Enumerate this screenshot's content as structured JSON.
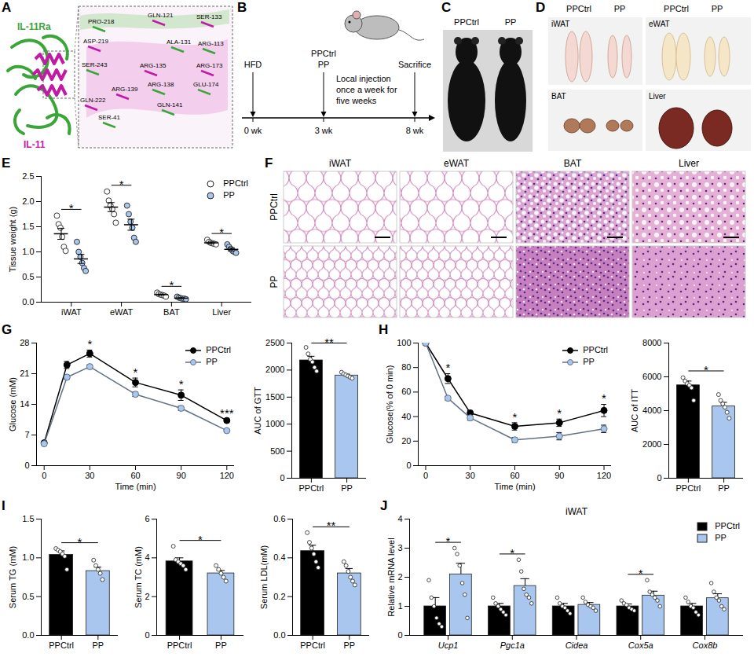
{
  "chart_data": [
    {
      "panel": "E",
      "type": "dot",
      "categories": [
        "iWAT",
        "eWAT",
        "BAT",
        "Liver"
      ],
      "ylabel": "Tissue weight (g)",
      "ylim": [
        0,
        2.5
      ],
      "yticks": [
        {
          "value": 0,
          "label": "0.0"
        },
        {
          "value": 0.5,
          "label": "0.5"
        },
        {
          "value": 1,
          "label": "1.0"
        },
        {
          "value": 1.5,
          "label": "1.5"
        },
        {
          "value": 2,
          "label": "2.0"
        },
        {
          "value": 2.5,
          "label": "2.5"
        }
      ],
      "legend": "top-right",
      "series": [
        {
          "name": "PPCtrl",
          "color": "#ffffff",
          "marker": "circle",
          "points": [
            [
              1.72,
              1.55,
              1.48,
              1.3,
              1.1,
              1.02
            ],
            [
              2.2,
              2.02,
              1.92,
              1.85,
              1.75,
              1.58
            ],
            [
              0.19,
              0.16,
              0.15,
              0.14,
              0.13,
              0.11
            ],
            [
              1.24,
              1.2,
              1.18,
              1.17,
              1.16,
              1.15
            ]
          ],
          "values": [
            1.36,
            1.89,
            0.15,
            1.18
          ],
          "errors": [
            0.11,
            0.09,
            0.01,
            0.015
          ]
        },
        {
          "name": "PP",
          "color": "#a9c6ee",
          "marker": "circle",
          "points": [
            [
              1.2,
              1.0,
              0.9,
              0.78,
              0.68,
              0.62
            ],
            [
              1.92,
              1.75,
              1.6,
              1.48,
              1.28,
              1.2
            ],
            [
              0.11,
              0.09,
              0.08,
              0.07,
              0.07,
              0.06
            ],
            [
              1.15,
              1.1,
              1.06,
              1.02,
              1.0,
              0.98
            ]
          ],
          "values": [
            0.86,
            1.54,
            0.08,
            1.05
          ],
          "errors": [
            0.09,
            0.11,
            0.007,
            0.03
          ]
        }
      ],
      "annotations": [
        {
          "x": "iWAT",
          "text": "*"
        },
        {
          "x": "eWAT",
          "text": "*"
        },
        {
          "x": "BAT",
          "text": "*"
        },
        {
          "x": "Liver",
          "text": "*"
        }
      ]
    },
    {
      "panel": "G",
      "type": "line",
      "x": [
        0,
        15,
        30,
        60,
        90,
        120
      ],
      "xlim": [
        -5,
        125
      ],
      "xticks": [
        0,
        30,
        60,
        90,
        120
      ],
      "xlabel": "Time (min)",
      "ylabel": "Glucose (mM)",
      "ylim": [
        0,
        28
      ],
      "yticks": [
        0,
        7,
        14,
        21,
        28
      ],
      "legend": "top-right",
      "series": [
        {
          "name": "PPCtrl",
          "color": "#000000",
          "marker": "circle",
          "values": [
            5.2,
            23,
            25.6,
            19,
            16.1,
            10.3
          ],
          "errors": [
            0.3,
            0.8,
            0.8,
            1,
            1.2,
            0.3
          ]
        },
        {
          "name": "PP",
          "color": "#a9c6ee",
          "marker": "circle",
          "values": [
            5,
            20.2,
            22.6,
            16.3,
            13.1,
            8
          ],
          "errors": [
            0.2,
            0.5,
            0.4,
            0.5,
            0.5,
            0.2
          ]
        }
      ],
      "annotations": [
        {
          "x": 30,
          "text": "*"
        },
        {
          "x": 60,
          "text": "*"
        },
        {
          "x": 90,
          "text": "*"
        },
        {
          "x": 120,
          "text": "***"
        }
      ]
    },
    {
      "type": "bar",
      "categories": [
        "PPCtrl",
        "PP"
      ],
      "ylabel": "AUC of GTT",
      "ylim": [
        0,
        2500
      ],
      "yticks": [
        0,
        500,
        1000,
        1500,
        2000,
        2500
      ],
      "values": [
        2180,
        1900
      ],
      "errors": [
        75,
        25
      ],
      "colors": [
        "#000000",
        "#a9c6ee"
      ],
      "points": [
        [
          2420,
          2300,
          2200,
          2150,
          2050,
          1980
        ],
        [
          1960,
          1930,
          1910,
          1890,
          1870,
          1850
        ]
      ],
      "annotations": [
        {
          "x1": "PPCtrl",
          "x2": "PP",
          "text": "**"
        }
      ]
    },
    {
      "panel": "H",
      "type": "line",
      "x": [
        0,
        15,
        30,
        60,
        90,
        120
      ],
      "xlim": [
        -5,
        125
      ],
      "xticks": [
        0,
        30,
        60,
        90,
        120
      ],
      "xlabel": "Time (min)",
      "ylabel": "Glucose(% of 0 min)",
      "ylim": [
        0,
        100
      ],
      "yticks": [
        0,
        20,
        40,
        60,
        80,
        100
      ],
      "legend": "top-right",
      "series": [
        {
          "name": "PPCtrl",
          "color": "#000000",
          "marker": "circle",
          "values": [
            100,
            71,
            43,
            32,
            35,
            45
          ],
          "errors": [
            0,
            4,
            2,
            3,
            3,
            5
          ]
        },
        {
          "name": "PP",
          "color": "#a9c6ee",
          "marker": "circle",
          "values": [
            100,
            55,
            39,
            21,
            24,
            30
          ],
          "errors": [
            0,
            1.5,
            2,
            2,
            3,
            3
          ]
        }
      ],
      "annotations": [
        {
          "x": 15,
          "text": "*"
        },
        {
          "x": 60,
          "text": "*"
        },
        {
          "x": 90,
          "text": "*"
        },
        {
          "x": 120,
          "text": "*"
        }
      ]
    },
    {
      "type": "bar",
      "categories": [
        "PPCtrl",
        "PP"
      ],
      "ylabel": "AUC of ITT",
      "ylim": [
        0,
        8000
      ],
      "yticks": [
        0,
        2000,
        4000,
        6000,
        8000
      ],
      "values": [
        5500,
        4250
      ],
      "errors": [
        250,
        240
      ],
      "colors": [
        "#000000",
        "#a9c6ee"
      ],
      "points": [
        [
          5950,
          5750,
          5600,
          5500,
          5350,
          4600
        ],
        [
          4950,
          4600,
          4400,
          4200,
          3900,
          3550
        ]
      ],
      "annotations": [
        {
          "x1": "PPCtrl",
          "x2": "PP",
          "text": "*"
        }
      ]
    },
    {
      "panel": "I",
      "type": "bar",
      "categories": [
        "PPCtrl",
        "PP"
      ],
      "ylabel": "Serum TG (mM)",
      "ylim": [
        0,
        1.5
      ],
      "yticks": [
        {
          "value": 0,
          "label": "0.0"
        },
        {
          "value": 0.5,
          "label": "0.5"
        },
        {
          "value": 1,
          "label": "1.0"
        },
        {
          "value": 1.5,
          "label": "1.5"
        }
      ],
      "values": [
        1.04,
        0.83
      ],
      "errors": [
        0.05,
        0.05
      ],
      "colors": [
        "#000000",
        "#a9c6ee"
      ],
      "points": [
        [
          1.12,
          1.1,
          1.08,
          1.05,
          1.02,
          0.85
        ],
        [
          0.97,
          0.9,
          0.85,
          0.8,
          0.72
        ]
      ],
      "annotations": [
        {
          "x1": "PPCtrl",
          "x2": "PP",
          "text": "*"
        }
      ]
    },
    {
      "type": "bar",
      "categories": [
        "PPCtrl",
        "PP"
      ],
      "ylabel": "Serum TC (mM)",
      "ylim": [
        0,
        6
      ],
      "yticks": [
        0,
        2,
        4,
        6
      ],
      "values": [
        3.82,
        3.2
      ],
      "errors": [
        0.18,
        0.15
      ],
      "colors": [
        "#000000",
        "#a9c6ee"
      ],
      "points": [
        [
          4.6,
          3.9,
          3.8,
          3.7,
          3.6,
          3.4
        ],
        [
          3.6,
          3.4,
          3.2,
          3.0,
          2.8
        ]
      ],
      "annotations": [
        {
          "x1": "PPCtrl",
          "x2": "PP",
          "text": "*"
        }
      ]
    },
    {
      "type": "bar",
      "categories": [
        "PPCtrl",
        "PP"
      ],
      "ylabel": "Serum LDL(mM)",
      "ylim": [
        0,
        0.6
      ],
      "yticks": [
        {
          "value": 0,
          "label": "0.0"
        },
        {
          "value": 0.2,
          "label": "0.2"
        },
        {
          "value": 0.4,
          "label": "0.4"
        },
        {
          "value": 0.6,
          "label": "0.6"
        }
      ],
      "values": [
        0.435,
        0.32
      ],
      "errors": [
        0.03,
        0.025
      ],
      "colors": [
        "#000000",
        "#a9c6ee"
      ],
      "points": [
        [
          0.53,
          0.48,
          0.45,
          0.42,
          0.38,
          0.35
        ],
        [
          0.38,
          0.36,
          0.33,
          0.3,
          0.28,
          0.26
        ]
      ],
      "annotations": [
        {
          "x1": "PPCtrl",
          "x2": "PP",
          "text": "**"
        }
      ]
    },
    {
      "panel": "J",
      "type": "grouped_bar",
      "title": "iWAT",
      "categories": [
        "Ucp1",
        "Pgc1a",
        "Cidea",
        "Cox5a",
        "Cox8b"
      ],
      "ylabel": "Relative mRNA level",
      "ylim": [
        0,
        4
      ],
      "yticks": [
        0,
        1,
        2,
        3,
        4
      ],
      "legend": "top-right",
      "series": [
        {
          "name": "PPCtrl",
          "color": "#000000",
          "values": [
            1,
            1,
            1,
            1,
            1
          ],
          "errors": [
            0.3,
            0.1,
            0.1,
            0.08,
            0.1
          ],
          "points": [
            [
              1.9,
              1.3,
              1.0,
              0.6,
              0.4,
              0.3
            ],
            [
              1.3,
              1.1,
              1.0,
              0.9,
              0.8,
              0.7
            ],
            [
              1.3,
              1.1,
              1.0,
              0.95,
              0.85,
              0.75
            ],
            [
              1.2,
              1.1,
              1.05,
              0.95,
              0.9,
              0.85
            ],
            [
              1.3,
              1.15,
              1.0,
              0.95,
              0.8,
              0.7
            ]
          ]
        },
        {
          "name": "PP",
          "color": "#a9c6ee",
          "values": [
            2.1,
            1.7,
            1.05,
            1.37,
            1.28
          ],
          "errors": [
            0.38,
            0.25,
            0.08,
            0.15,
            0.15
          ],
          "points": [
            [
              3.0,
              2.8,
              2.4,
              1.8,
              1.4,
              0.6
            ],
            [
              2.6,
              2.2,
              1.6,
              1.4,
              1.3,
              1.1
            ],
            [
              1.3,
              1.15,
              1.05,
              1.0,
              0.95,
              0.85
            ],
            [
              1.9,
              1.5,
              1.4,
              1.3,
              1.2,
              1.0
            ],
            [
              1.8,
              1.5,
              1.3,
              1.2,
              1.0,
              0.9
            ]
          ]
        }
      ],
      "annotations": [
        {
          "x": "Ucp1",
          "text": "*"
        },
        {
          "x": "Pgc1a",
          "text": "*"
        },
        {
          "x": "Cox5a",
          "text": "*"
        }
      ]
    }
  ],
  "panels": {
    "A": {
      "letter": "A",
      "receptor": "IL-11Ra",
      "ligand": "IL-11",
      "residues": [
        "PRO-218",
        "ASP-219",
        "SER-243",
        "GLN-222",
        "SER-41",
        "GLN-121",
        "ALA-131",
        "ARG-135",
        "ARG-138",
        "ARG-139",
        "GLN-141",
        "SER-133",
        "ARG-113",
        "ARG-173",
        "GLU-174"
      ]
    },
    "B": {
      "letter": "B",
      "events": [
        {
          "time": "0 wk",
          "labels": [
            "HFD"
          ]
        },
        {
          "time": "3 wk",
          "labels": [
            "PPCtrl",
            "PP"
          ]
        },
        {
          "time": "8 wk",
          "labels": [
            "Sacrifice"
          ]
        }
      ],
      "note": "Local injection once a week for five weeks"
    },
    "C": {
      "letter": "C",
      "groups": [
        "PPCtrl",
        "PP"
      ]
    },
    "D": {
      "letter": "D",
      "groups": [
        "PPCtrl",
        "PP"
      ],
      "tissues": [
        "iWAT",
        "eWAT",
        "BAT",
        "Liver"
      ]
    },
    "F": {
      "letter": "F",
      "rows": [
        "PPCtrl",
        "PP"
      ],
      "columns": [
        "iWAT",
        "eWAT",
        "BAT",
        "Liver"
      ]
    }
  }
}
